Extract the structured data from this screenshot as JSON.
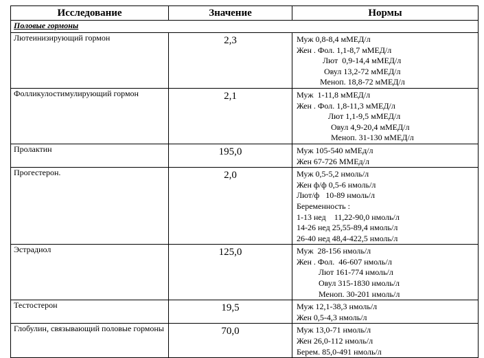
{
  "table": {
    "headers": [
      "Исследование",
      "Значение",
      "Нормы"
    ],
    "section": "Половые гормоны",
    "rows": [
      {
        "name": "Лютеинизирующий гормон",
        "value": "2,3",
        "norms": [
          "Муж 0,8-8,4 мМЕД/л",
          "Жен . Фол. 1,1-8,7 мМЕД/л",
          "Лют  0,9-14,4 мМЕД/л",
          "Овул 13,2-72 мМЕД/л",
          "Меноп. 18,8-72 мМЕД/л"
        ]
      },
      {
        "name": "Фолликулостимулирующий гормон",
        "value": "2,1",
        "norms": [
          "Муж  1-11,8 мМЕД/л",
          "Жен . Фол. 1,8-11,3 мМЕД/л",
          "Лют 1,1-9,5 мМЕД/л",
          "Овул 4,9-20,4 мМЕД/л",
          "Меноп. 31-130 мМЕД/л"
        ]
      },
      {
        "name": "Пролактин",
        "value": "195,0",
        "norms": [
          "Муж 105-540 мМЕд/л",
          "Жен 67-726 ММЕд/л"
        ]
      },
      {
        "name": "Прогестерон.",
        "value": "2,0",
        "norms": [
          "Муж 0,5-5,2 нмоль/л",
          "Жен ф/ф 0,5-6 нмоль/л",
          "Лют/ф   10-89 нмоль/л",
          "Беременность :",
          "1-13 нед    11,22-90,0 нмоль/л",
          "14-26 нед 25,55-89,4 нмоль/л",
          "26-40 нед 48,4-422,5 нмоль/л"
        ]
      },
      {
        "name": "Эстрадиол",
        "value": "125,0",
        "norms": [
          "Муж  28-156 нмоль/л",
          "Жен . Фол.  46-607 нмоль/л",
          "Лют 161-774 нмоль/л",
          "Овул 315-1830 нмоль/л",
          "Меноп. 30-201 нмоль/л"
        ]
      },
      {
        "name": "Тестостерон",
        "value": "19,5",
        "norms": [
          "Муж 12,1-38,3 нмоль/л",
          "Жен 0,5-4,3 нмоль/л"
        ]
      },
      {
        "name": "Глобулин, связывающий половые гормоны",
        "value": "70,0",
        "norms": [
          "Муж 13,0-71 нмоль/л",
          "Жен 26,0-112 нмоль/л",
          "Берем. 85,0-491 нмоль/л"
        ]
      }
    ]
  }
}
